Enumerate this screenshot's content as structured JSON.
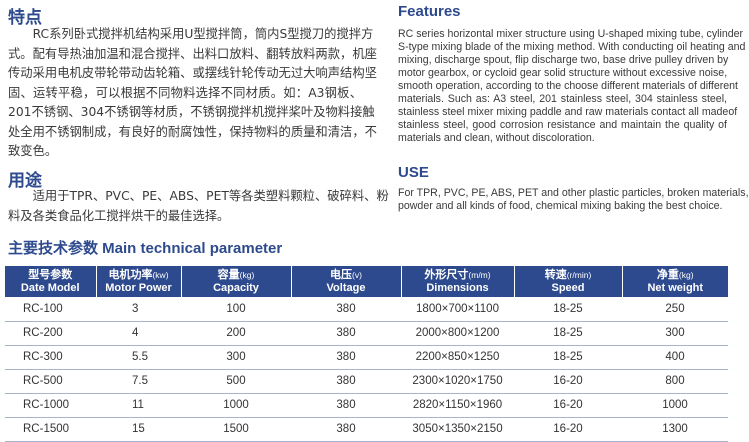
{
  "cn_features": {
    "title": "特点",
    "lines": [
      "　　RC系列卧式搅拌机结构采用U型搅拌筒，筒内S型搅刀的搅拌方",
      "式。配有导热油加温和混合搅拌、出料口放料、翻转放料两款，机座",
      "传动采用电机皮带轮带动齿轮箱、或摆线针轮传动无过大响声结构坚",
      "固、运转平稳，可以根据不同物料选择不同材质。如：A3钢板、",
      "201不锈钢、304不锈钢等材质，不锈钢搅拌机搅拌桨叶及物料接触",
      "处全用不锈钢制成，有良好的耐腐蚀性，保持物料的质量和清洁，不",
      "致变色。"
    ]
  },
  "cn_use": {
    "title": "用途",
    "lines": [
      "　　适用于TPR、PVC、PE、ABS、PET等各类塑料颗粒、破碎料、粉",
      "料及各类食品化工搅拌烘干的最佳选择。"
    ]
  },
  "en_features": {
    "title": "Features",
    "lines": [
      "RC series horizontal mixer structure using U-shaped mixing tube, cylinder",
      "S-type mixing blade of the mixing method. With conducting oil heating and",
      "mixing, discharge spout, flip discharge two, base drive pulley driven by",
      "motor gearbox, or cycloid gear solid structure without excessive noise,",
      "smooth operation, according to the choose different materials of different",
      "materials. Such as: A3 steel, 201 stainless steel, 304 stainless steel,",
      "stainless steel mixer mixing paddle and raw materials contact all madeof",
      "stainless steel, good corrosion resistance and maintain the quality of",
      "materials and clean, without discoloration."
    ]
  },
  "en_use": {
    "title": "USE",
    "lines": [
      "For TPR, PVC, PE, ABS, PET and other plastic particles, broken materials,",
      "powder and all kinds of food, chemical mixing baking the best choice."
    ]
  },
  "params": {
    "title": "主要技术参数  Main technical parameter",
    "headers": [
      {
        "cn": "型号参数",
        "unit": "",
        "en": "Date Model"
      },
      {
        "cn": "电机功率",
        "unit": "(kw)",
        "en": "Motor Power"
      },
      {
        "cn": "容量",
        "unit": "(kg)",
        "en": "Capacity"
      },
      {
        "cn": "电压",
        "unit": "(v)",
        "en": "Voltage"
      },
      {
        "cn": "外形尺寸",
        "unit": "(m/m)",
        "en": "Dimensions"
      },
      {
        "cn": "转速",
        "unit": "(r/min)",
        "en": "Speed"
      },
      {
        "cn": "净重",
        "unit": "(kg)",
        "en": "Net weight"
      }
    ],
    "rows": [
      [
        "RC-100",
        "3",
        "100",
        "380",
        "1800×700×1100",
        "18-25",
        "250"
      ],
      [
        "RC-200",
        "4",
        "200",
        "380",
        "2000×800×1200",
        "18-25",
        "300"
      ],
      [
        "RC-300",
        "5.5",
        "300",
        "380",
        "2200×850×1250",
        "18-25",
        "400"
      ],
      [
        "RC-500",
        "7.5",
        "500",
        "380",
        "2300×1020×1750",
        "16-20",
        "800"
      ],
      [
        "RC-1000",
        "11",
        "1000",
        "380",
        "2820×1150×1960",
        "16-20",
        "1000"
      ],
      [
        "RC-1500",
        "15",
        "1500",
        "380",
        "3050×1350×2150",
        "16-20",
        "1300"
      ]
    ]
  },
  "colors": {
    "heading": "#2e4a8e",
    "table_header": "#2e4a8e",
    "row_line": "#aab3cc"
  }
}
